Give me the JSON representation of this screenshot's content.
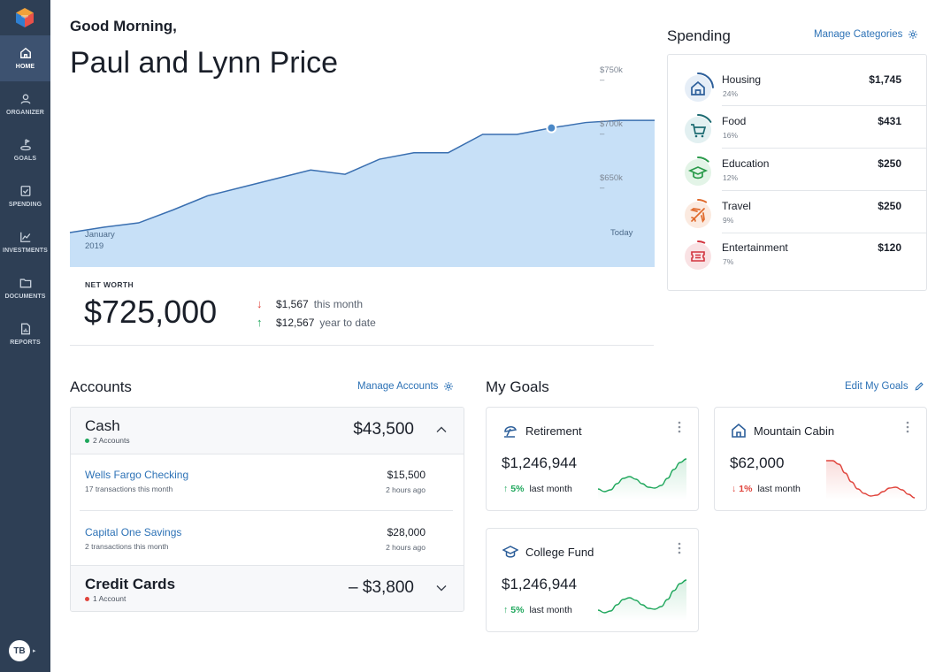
{
  "sidebar": {
    "items": [
      {
        "label": "HOME",
        "icon": "home-icon",
        "active": true
      },
      {
        "label": "ORGANIZER",
        "icon": "user-icon",
        "active": false
      },
      {
        "label": "GOALS",
        "icon": "goals-icon",
        "active": false
      },
      {
        "label": "SPENDING",
        "icon": "checklist-icon",
        "active": false
      },
      {
        "label": "INVESTMENTS",
        "icon": "chart-line-icon",
        "active": false
      },
      {
        "label": "DOCUMENTS",
        "icon": "folder-icon",
        "active": false
      },
      {
        "label": "REPORTS",
        "icon": "report-icon",
        "active": false
      }
    ],
    "avatar_initials": "TB"
  },
  "header": {
    "greeting": "Good Morning,",
    "name": "Paul and Lynn Price"
  },
  "net_worth": {
    "label": "NET WORTH",
    "value": "$725,000",
    "month_change": "$1,567",
    "month_label": "this month",
    "ytd_change": "$12,567",
    "ytd_label": "year to date",
    "colors": {
      "down": "#e0443c",
      "up": "#1fa75c"
    }
  },
  "chart_data": {
    "type": "area",
    "x_start_label": [
      "January",
      "2019"
    ],
    "x_end_label": "Today",
    "y_ticks": [
      "$750k –",
      "$700k –",
      "$650k –"
    ],
    "y_tick_values": [
      750000,
      700000,
      650000
    ],
    "values": [
      600000,
      605000,
      609000,
      621000,
      634000,
      642000,
      650000,
      658000,
      654000,
      668000,
      674000,
      674000,
      691000,
      691000,
      697000,
      702000,
      704000,
      704000
    ],
    "highlight_index": 14,
    "fill": "#c7e0f7",
    "line": "#3a6fb0",
    "marker": "#4a88c7"
  },
  "spending": {
    "title": "Spending",
    "manage_label": "Manage Categories",
    "categories": [
      {
        "name": "Housing",
        "pct": "24%",
        "amount": "$1,745",
        "icon": "house-icon",
        "color": "#2d5f9a",
        "bg": "#e6eef7",
        "progress": 0.24
      },
      {
        "name": "Food",
        "pct": "16%",
        "amount": "$431",
        "icon": "cart-icon",
        "color": "#1d6b72",
        "bg": "#e2f0f1",
        "progress": 0.16
      },
      {
        "name": "Education",
        "pct": "12%",
        "amount": "$250",
        "icon": "grad-cap-icon",
        "color": "#2a9a4a",
        "bg": "#e3f4e7",
        "progress": 0.12
      },
      {
        "name": "Travel",
        "pct": "9%",
        "amount": "$250",
        "icon": "plane-icon",
        "color": "#e06a2c",
        "bg": "#fbeae0",
        "progress": 0.09
      },
      {
        "name": "Entertainment",
        "pct": "7%",
        "amount": "$120",
        "icon": "ticket-icon",
        "color": "#d2343f",
        "bg": "#f9e2e4",
        "progress": 0.07
      }
    ]
  },
  "accounts": {
    "title": "Accounts",
    "manage_label": "Manage Accounts",
    "groups": [
      {
        "name": "Cash",
        "count": "2 Accounts",
        "total": "$43,500",
        "dot": "#1fa75c",
        "expanded": true,
        "items": [
          {
            "name": "Wells Fargo Checking",
            "sub": "17 transactions this month",
            "amount": "$15,500",
            "time": "2 hours ago"
          },
          {
            "name": "Capital One Savings",
            "sub": "2 transactions this month",
            "amount": "$28,000",
            "time": "2 hours ago"
          }
        ]
      },
      {
        "name": "Credit Cards",
        "count": "1 Account",
        "total": "– $3,800",
        "dot": "#e0443c",
        "expanded": false
      }
    ]
  },
  "goals": {
    "title": "My Goals",
    "edit_label": "Edit My Goals",
    "items": [
      {
        "name": "Retirement",
        "icon": "umbrella-icon",
        "value": "$1,246,944",
        "change": "5%",
        "change_label": "last month",
        "trend": "up",
        "color": "#1fa75c",
        "spark": [
          12,
          9,
          11,
          18,
          24,
          26,
          23,
          18,
          14,
          13,
          16,
          24,
          34,
          42,
          46
        ]
      },
      {
        "name": "Mountain Cabin",
        "icon": "house-icon",
        "value": "$62,000",
        "change": "1%",
        "change_label": "last month",
        "trend": "down",
        "color": "#e0443c",
        "spark": [
          44,
          44,
          40,
          30,
          20,
          12,
          7,
          4,
          5,
          9,
          13,
          14,
          11,
          6,
          2
        ]
      },
      {
        "name": "College Fund",
        "icon": "grad-cap-icon",
        "value": "$1,246,944",
        "change": "5%",
        "change_label": "last month",
        "trend": "up",
        "color": "#1fa75c",
        "spark": [
          12,
          9,
          11,
          18,
          24,
          26,
          23,
          18,
          14,
          13,
          16,
          24,
          34,
          42,
          46
        ]
      }
    ]
  }
}
